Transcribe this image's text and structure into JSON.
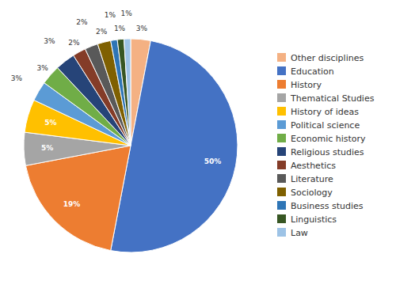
{
  "chart_data": {
    "type": "pie",
    "categories": [
      "Other disciplines",
      "Education",
      "History",
      "Thematical Studies",
      "History of ideas",
      "Political science",
      "Economic history",
      "Religious studies",
      "Aesthetics",
      "Literature",
      "Sociology",
      "Business studies",
      "Linguistics",
      "Law"
    ],
    "values": [
      3,
      50,
      19,
      5,
      5,
      3,
      3,
      3,
      2,
      2,
      2,
      1,
      1,
      1
    ],
    "value_labels": [
      "3%",
      "50%",
      "19%",
      "5%",
      "5%",
      "3%",
      "3%",
      "3%",
      "2%",
      "2%",
      "2%",
      "1%",
      "1%",
      "1%"
    ],
    "colors": [
      "#f4b183",
      "#4472c4",
      "#ed7d31",
      "#a5a5a5",
      "#ffc000",
      "#5b9bd5",
      "#70ad47",
      "#264478",
      "#843c28",
      "#595959",
      "#7f6000",
      "#2e75b6",
      "#375623",
      "#9dc3e6"
    ],
    "data_labels": true,
    "legend": "right"
  }
}
